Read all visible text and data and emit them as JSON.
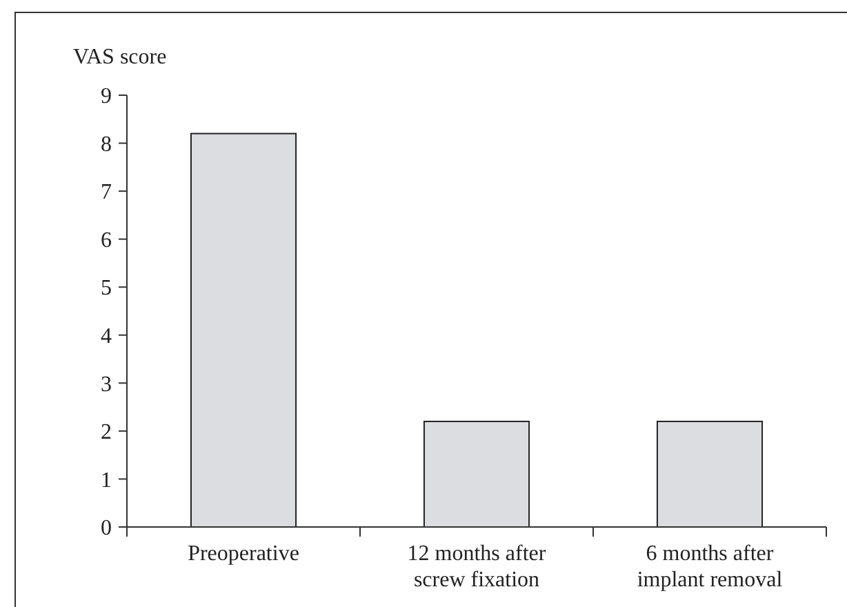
{
  "chart_data": {
    "type": "bar",
    "ylabel": "VAS score",
    "categories": [
      "Preoperative",
      "12 months after screw fixation",
      "6 months after implant removal"
    ],
    "values": [
      8.2,
      2.2,
      2.2
    ],
    "color": "#dcdde0",
    "ylim": [
      0,
      9
    ],
    "yticks": [
      0,
      1,
      2,
      3,
      4,
      5,
      6,
      7,
      8,
      9
    ],
    "grid": false
  }
}
